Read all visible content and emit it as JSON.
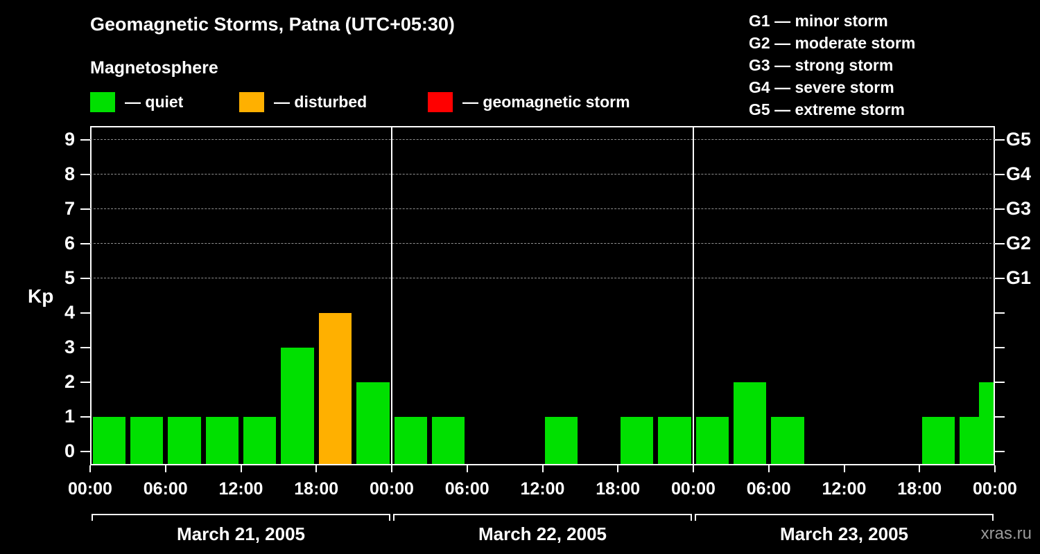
{
  "header": {
    "title": "Geomagnetic Storms, Patna (UTC+05:30)",
    "subtitle": "Magnetosphere",
    "legend": [
      {
        "key": "quiet",
        "label": "— quiet"
      },
      {
        "key": "disturbed",
        "label": "— disturbed"
      },
      {
        "key": "storm",
        "label": "— geomagnetic storm"
      }
    ],
    "g_legend": [
      "G1 — minor storm",
      "G2 — moderate storm",
      "G3 — strong storm",
      "G4 — severe storm",
      "G5 — extreme storm"
    ]
  },
  "colors": {
    "quiet": "#00e000",
    "disturbed": "#ffb000",
    "storm": "#ff0000",
    "grid": "#909090",
    "axis": "#ffffff"
  },
  "watermark": "xras.ru",
  "chart_data": {
    "type": "bar",
    "title": "Geomagnetic Storms, Patna (UTC+05:30)",
    "ylabel": "Kp",
    "ylim": [
      0,
      9.8
    ],
    "yticks": [
      0,
      1,
      2,
      3,
      4,
      5,
      6,
      7,
      8,
      9
    ],
    "grid_levels": [
      5,
      6,
      7,
      8,
      9
    ],
    "right_labels": [
      {
        "text": "G5",
        "value": 9
      },
      {
        "text": "G4",
        "value": 8
      },
      {
        "text": "G3",
        "value": 7
      },
      {
        "text": "G2",
        "value": 6
      },
      {
        "text": "G1",
        "value": 5
      }
    ],
    "hour_labels": [
      "00:00",
      "06:00",
      "12:00",
      "18:00"
    ],
    "closing_hour_label": "00:00",
    "bar_interval_hours": 3,
    "days": [
      {
        "date": "March 21, 2005",
        "values": [
          1,
          1,
          1,
          1,
          1,
          3,
          4,
          2
        ],
        "states": [
          "quiet",
          "quiet",
          "quiet",
          "quiet",
          "quiet",
          "quiet",
          "disturbed",
          "quiet"
        ]
      },
      {
        "date": "March 22, 2005",
        "values": [
          1,
          1,
          0,
          0,
          1,
          0,
          1,
          1
        ],
        "states": [
          "quiet",
          "quiet",
          "quiet",
          "quiet",
          "quiet",
          "quiet",
          "quiet",
          "quiet"
        ]
      },
      {
        "date": "March 23, 2005",
        "values": [
          1,
          2,
          1,
          0,
          0,
          0,
          1,
          1
        ],
        "states": [
          "quiet",
          "quiet",
          "quiet",
          "quiet",
          "quiet",
          "quiet",
          "quiet",
          "quiet"
        ]
      }
    ],
    "trailing_partial_bar": {
      "value": 2,
      "state": "quiet",
      "width_fraction": 0.45
    }
  }
}
